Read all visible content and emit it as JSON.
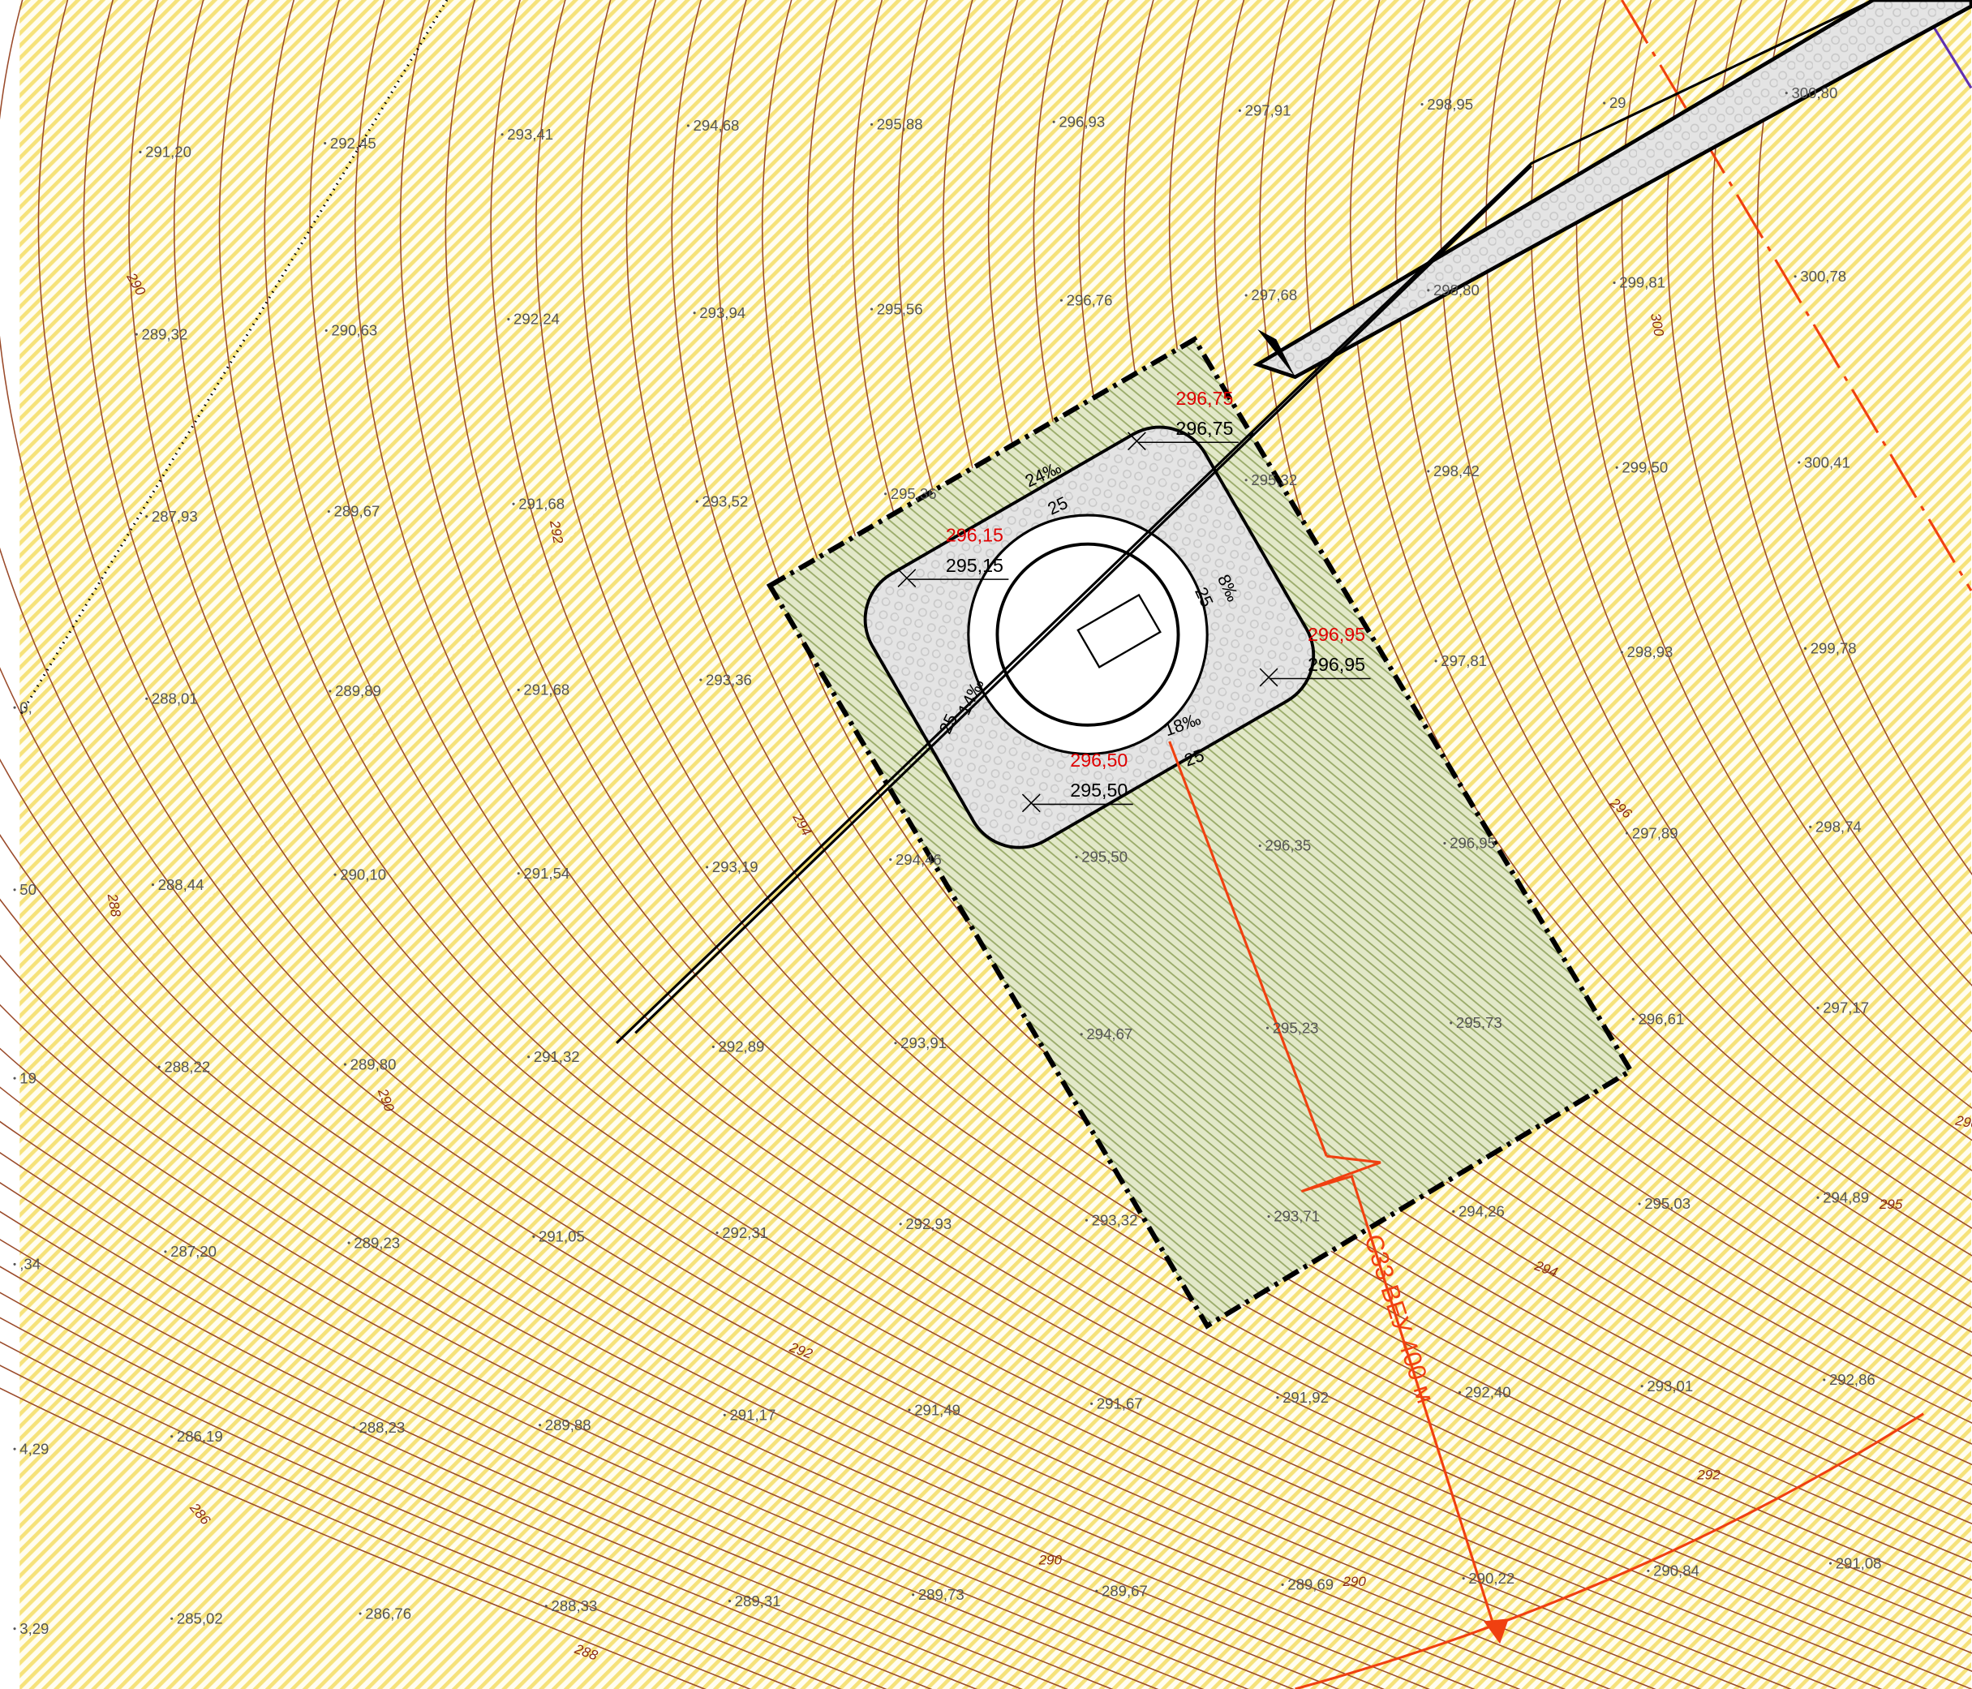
{
  "spot_elevations": [
    "291,20",
    "292,45",
    "293,41",
    "294,68",
    "295,88",
    "296,93",
    "297,91",
    "298,95",
    "300,80",
    "289,32",
    "290,63",
    "292,24",
    "293,94",
    "295,56",
    "296,76",
    "297,68",
    "298,80",
    "299,81",
    "300,78",
    "287,93",
    "289,67",
    "291,68",
    "293,52",
    "295,36",
    "295,32",
    "298,42",
    "299,50",
    "300,41",
    "288,01",
    "289,89",
    "291,68",
    "293,36",
    "297,81",
    "298,93",
    "299,78",
    "288,44",
    "290,10",
    "291,54",
    "293,19",
    "294,46",
    "295,50",
    "296,35",
    "296,95",
    "297,89",
    "298,74",
    "288,22",
    "289,80",
    "291,32",
    "292,89",
    "293,91",
    "294,67",
    "295,23",
    "295,73",
    "296,61",
    "297,17",
    "287,20",
    "289,23",
    "291,05",
    "292,31",
    "292,93",
    "293,32",
    "293,71",
    "294,26",
    "295,03",
    "294,89",
    "286,19",
    "288,23",
    "289,88",
    "291,17",
    "291,49",
    "291,67",
    "291,92",
    "292,40",
    "293,01",
    "292,86",
    "285,02",
    "286,76",
    "288,33",
    "289,31",
    "289,73",
    "289,67",
    "289,69",
    "290,22",
    "290,84",
    "291,08",
    "0,",
    "50",
    "19",
    ",34",
    "4,29",
    "3,29",
    "29"
  ],
  "contour_labels": [
    "290",
    "292",
    "288",
    "294",
    "290",
    "296",
    "300",
    "286",
    "292",
    "294",
    "292",
    "290",
    "290",
    "288",
    "296",
    "295"
  ],
  "pad": {
    "design_elevations": [
      "296,75",
      "296,15",
      "296,95",
      "296,50"
    ],
    "existing_elevations": [
      "296,75",
      "295,15",
      "296,95",
      "295,50"
    ],
    "slopes": [
      {
        "grade": "24‰",
        "length": "25"
      },
      {
        "grade": "8‰",
        "length": "25"
      },
      {
        "grade": "14‰",
        "length": "25"
      },
      {
        "grade": "18‰",
        "length": "25"
      }
    ]
  },
  "power_line": {
    "label": "С33 ВЕУ 400 м"
  }
}
